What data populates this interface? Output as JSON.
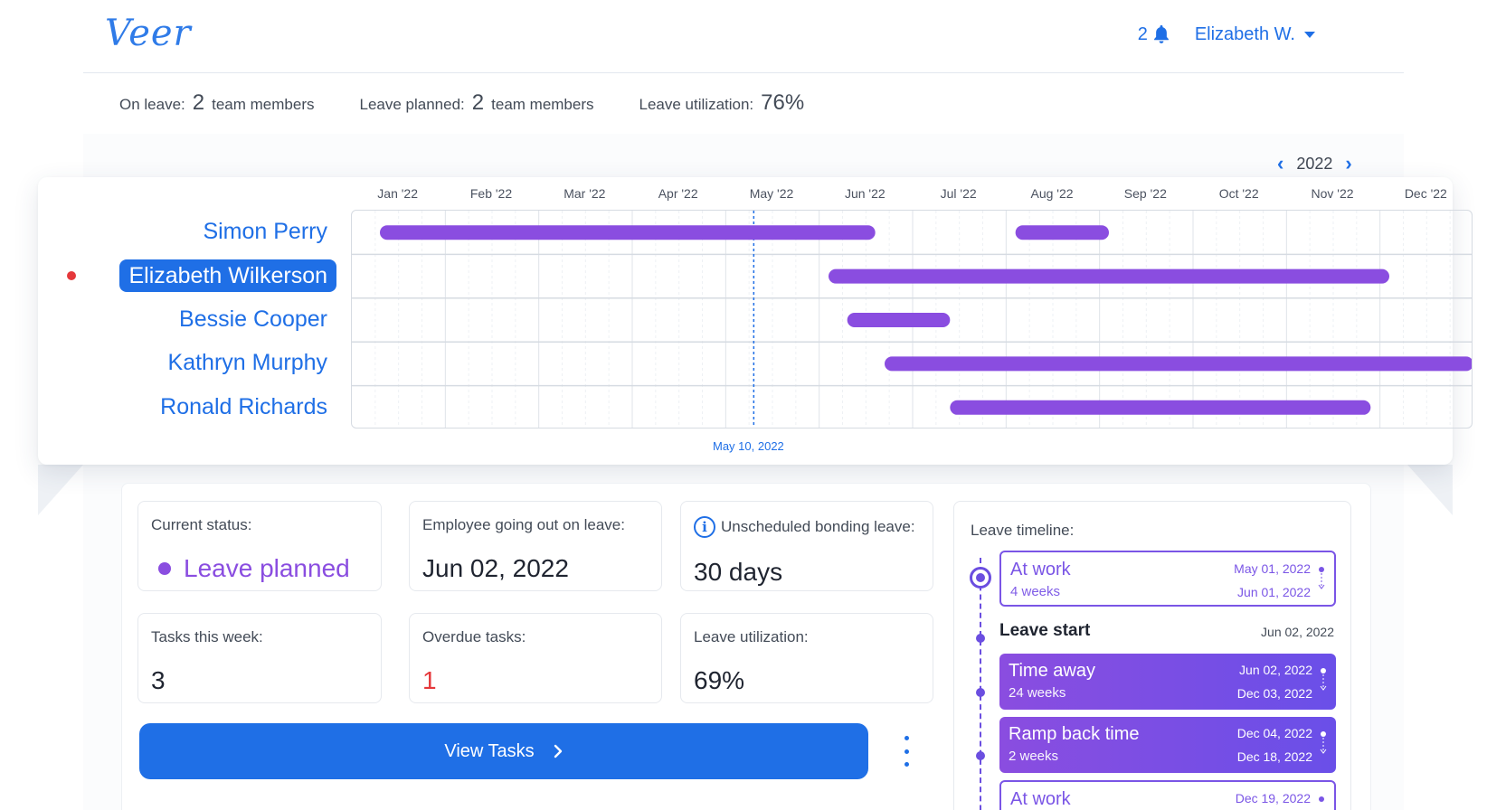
{
  "header": {
    "logo": "Veer",
    "notification_count": "2",
    "user_name": "Elizabeth W."
  },
  "summary": {
    "on_leave_label": "On leave:",
    "on_leave_count": "2",
    "on_leave_unit": "team members",
    "planned_label": "Leave planned:",
    "planned_count": "2",
    "planned_unit": "team members",
    "utilization_label": "Leave utilization:",
    "utilization_value": "76%"
  },
  "year_nav": {
    "year": "2022"
  },
  "gantt": {
    "months": [
      "Jan '22",
      "Feb '22",
      "Mar '22",
      "Apr '22",
      "May '22",
      "Jun '22",
      "Jul '22",
      "Aug '22",
      "Sep '22",
      "Oct '22",
      "Nov '22",
      "Dec '22"
    ],
    "today_label": "May 10, 2022",
    "today_month_fraction": 4.3,
    "bar_color": "#8a4de0",
    "rows": [
      {
        "name": "Simon Perry",
        "active": false,
        "bars": [
          [
            0.3,
            5.6
          ],
          [
            7.1,
            8.1
          ]
        ]
      },
      {
        "name": "Elizabeth Wilkerson",
        "active": true,
        "bars": [
          [
            5.1,
            11.1
          ]
        ]
      },
      {
        "name": "Bessie Cooper",
        "active": false,
        "bars": [
          [
            5.3,
            6.4
          ]
        ]
      },
      {
        "name": "Kathryn Murphy",
        "active": false,
        "bars": [
          [
            5.7,
            12.0
          ]
        ]
      },
      {
        "name": "Ronald Richards",
        "active": false,
        "bars": [
          [
            6.4,
            10.9
          ]
        ]
      }
    ]
  },
  "details": {
    "current_status_label": "Current status:",
    "current_status_value": "Leave planned",
    "going_out_label": "Employee going out on leave:",
    "going_out_value": "Jun 02, 2022",
    "bonding_label": "Unscheduled bonding leave:",
    "bonding_value": "30 days",
    "tasks_label": "Tasks this week:",
    "tasks_value": "3",
    "overdue_label": "Overdue tasks:",
    "overdue_value": "1",
    "utilization_label": "Leave utilization:",
    "utilization_value": "69%",
    "view_tasks_label": "View Tasks"
  },
  "timeline": {
    "title": "Leave timeline:",
    "items": [
      {
        "title": "At work",
        "duration": "4 weeks",
        "start": "May 01, 2022",
        "end": "Jun 01, 2022"
      },
      {
        "title": "Time away",
        "duration": "24 weeks",
        "start": "Jun 02, 2022",
        "end": "Dec 03, 2022"
      },
      {
        "title": "Ramp back time",
        "duration": "2 weeks",
        "start": "Dec 04, 2022",
        "end": "Dec 18, 2022"
      },
      {
        "title": "At work",
        "duration": "",
        "start": "Dec 19, 2022",
        "end": ""
      }
    ],
    "leave_start_label": "Leave start",
    "leave_start_date": "Jun 02, 2022"
  }
}
